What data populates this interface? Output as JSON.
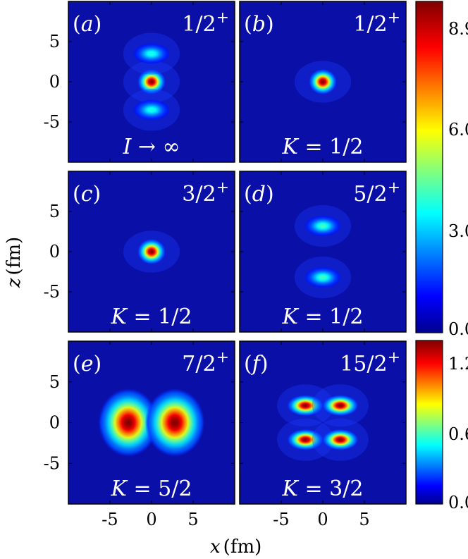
{
  "figure": {
    "xlabel_var": "x",
    "xlabel_unit": "(fm)",
    "ylabel_var": "z",
    "ylabel_unit": "(fm)",
    "x_ticks": [
      "-5",
      "0",
      "5"
    ],
    "y_ticks": [
      "5",
      "0",
      "-5"
    ],
    "colorbar_top_ticks": [
      "8.9",
      "6.0",
      "3.0",
      "0.0"
    ],
    "colorbar_bottom_ticks": [
      "1.2",
      "0.6",
      "0.0"
    ]
  },
  "chart_data": [
    {
      "type": "heatmap",
      "panel": "(a)",
      "state": "1/2+",
      "label": "I → ∞",
      "xlim": [
        -10,
        10
      ],
      "ylim": [
        -10,
        10
      ],
      "colorbar": "top",
      "clim": [
        0,
        10
      ],
      "blobs": [
        {
          "x": 0,
          "z": 0,
          "peak": 10
        },
        {
          "x": 0,
          "z": 3.5,
          "peak": 3.2
        },
        {
          "x": 0,
          "z": -3.5,
          "peak": 3.2
        }
      ]
    },
    {
      "type": "heatmap",
      "panel": "(b)",
      "state": "1/2+",
      "label": "K = 1/2",
      "xlim": [
        -10,
        10
      ],
      "ylim": [
        -10,
        10
      ],
      "colorbar": "top",
      "clim": [
        0,
        10
      ],
      "blobs": [
        {
          "x": 0,
          "z": 0,
          "peak": 10
        }
      ]
    },
    {
      "type": "heatmap",
      "panel": "(c)",
      "state": "3/2+",
      "label": "K = 1/2",
      "xlim": [
        -10,
        10
      ],
      "ylim": [
        -10,
        10
      ],
      "colorbar": "top",
      "clim": [
        0,
        10
      ],
      "blobs": [
        {
          "x": 0,
          "z": 0,
          "peak": 10
        }
      ]
    },
    {
      "type": "heatmap",
      "panel": "(d)",
      "state": "5/2+",
      "label": "K = 1/2",
      "xlim": [
        -10,
        10
      ],
      "ylim": [
        -10,
        10
      ],
      "colorbar": "top",
      "clim": [
        0,
        10
      ],
      "blobs": [
        {
          "x": 0,
          "z": 3.2,
          "peak": 3.6
        },
        {
          "x": 0,
          "z": -3.2,
          "peak": 3.6
        }
      ]
    },
    {
      "type": "heatmap",
      "panel": "(e)",
      "state": "7/2+",
      "label": "K = 5/2",
      "xlim": [
        -10,
        10
      ],
      "ylim": [
        -10,
        10
      ],
      "colorbar": "bottom",
      "clim": [
        0,
        1.4
      ],
      "blobs": [
        {
          "x": -2.8,
          "z": 0,
          "peak": 1.4
        },
        {
          "x": 2.8,
          "z": 0,
          "peak": 1.4
        }
      ]
    },
    {
      "type": "heatmap",
      "panel": "(f)",
      "state": "15/2+",
      "label": "K = 3/2",
      "xlim": [
        -10,
        10
      ],
      "ylim": [
        -10,
        10
      ],
      "colorbar": "bottom",
      "clim": [
        0,
        1.4
      ],
      "blobs": [
        {
          "x": -2.1,
          "z": 2.1,
          "peak": 1.4
        },
        {
          "x": 2.1,
          "z": 2.1,
          "peak": 1.4
        },
        {
          "x": -2.1,
          "z": -2.1,
          "peak": 1.4
        },
        {
          "x": 2.1,
          "z": -2.1,
          "peak": 1.4
        }
      ]
    }
  ]
}
